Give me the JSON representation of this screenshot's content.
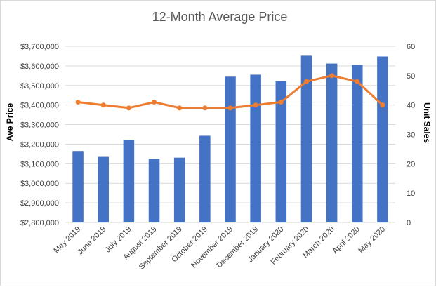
{
  "chart_data": {
    "type": "bar",
    "title": "12-Month Average Price",
    "ylabel": "Ave Price",
    "y2label": "Unit Sales",
    "categories": [
      "May 2019",
      "June 2019",
      "July 2019",
      "August 2019",
      "September 2019",
      "October 2019",
      "November 2019",
      "December 2019",
      "January 2020",
      "February 2020",
      "March 2020",
      "April 2020",
      "May 2020"
    ],
    "ylim": [
      2800000,
      3700000
    ],
    "yticks": [
      "$2,800,000",
      "$2,900,000",
      "$3,000,000",
      "$3,100,000",
      "$3,200,000",
      "$3,300,000",
      "$3,400,000",
      "$3,500,000",
      "$3,600,000",
      "$3,700,000"
    ],
    "y2lim": [
      0,
      60
    ],
    "y2ticks": [
      "0",
      "10",
      "20",
      "30",
      "40",
      "50",
      "60"
    ],
    "grid": true,
    "series": [
      {
        "type": "bar",
        "axis": "left",
        "color": "#4472c4",
        "values": [
          3165000,
          3135000,
          3222000,
          3125000,
          3131000,
          3243000,
          3545000,
          3555000,
          3522000,
          3652000,
          3612000,
          3605000,
          3648000
        ]
      },
      {
        "type": "line",
        "axis": "right",
        "color": "#ed7d31",
        "values": [
          41,
          40,
          39,
          41,
          39,
          39,
          39,
          40,
          41,
          48,
          50,
          48,
          40
        ]
      }
    ]
  }
}
